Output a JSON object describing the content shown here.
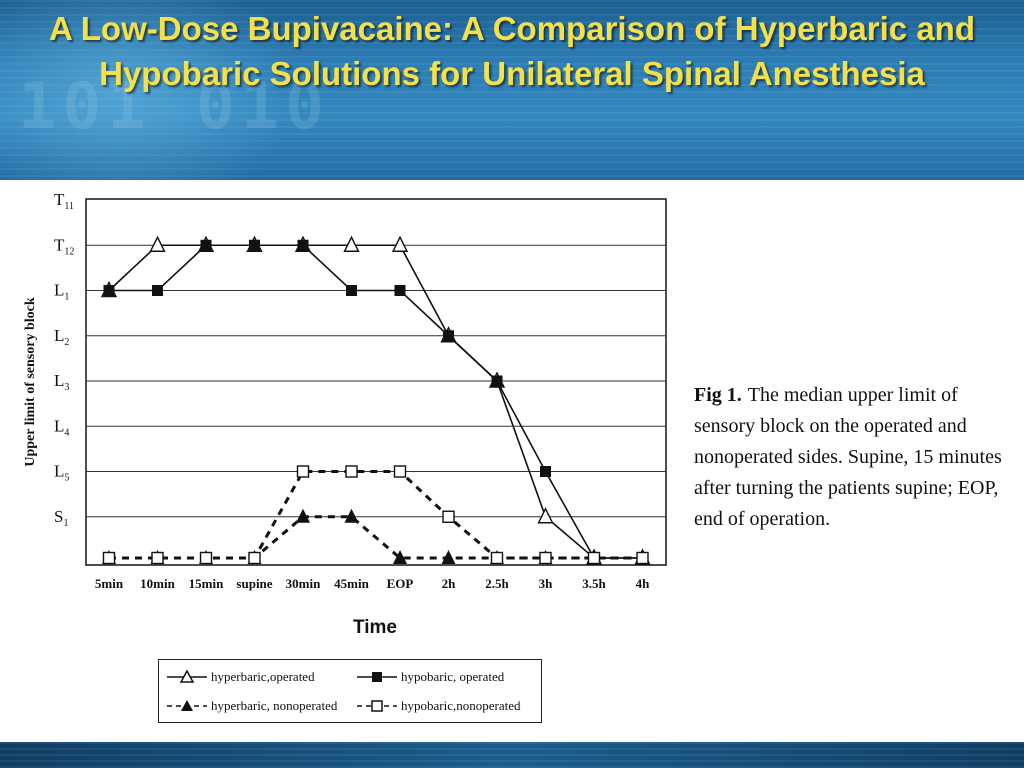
{
  "slide": {
    "title": "A Low-Dose Bupivacaine: A Comparison of Hyperbaric and Hypobaric Solutions for Unilateral Spinal Anesthesia",
    "header_color": "#2c7db4",
    "title_color": "#f4e04a"
  },
  "caption": {
    "figure_label": "Fig 1.",
    "text": "The median upper limit of sensory block on the operated and nonoperated sides. Supine, 15 minutes after turning the patients supine; EOP, end of operation."
  },
  "chart_data": {
    "type": "line",
    "xlabel": "Time",
    "ylabel": "Upper limit of sensory block",
    "categories": [
      "5min",
      "10min",
      "15min",
      "supine",
      "30min",
      "45min",
      "EOP",
      "2h",
      "2.5h",
      "3h",
      "3.5h",
      "4h"
    ],
    "y_levels": [
      "T11",
      "T12",
      "L1",
      "L2",
      "L3",
      "L4",
      "L5",
      "S1"
    ],
    "y_tick_labels": [
      {
        "main": "T",
        "sub": "11"
      },
      {
        "main": "T",
        "sub": "12"
      },
      {
        "main": "L",
        "sub": "1"
      },
      {
        "main": "L",
        "sub": "2"
      },
      {
        "main": "L",
        "sub": "3"
      },
      {
        "main": "L",
        "sub": "4"
      },
      {
        "main": "L",
        "sub": "5"
      },
      {
        "main": "S",
        "sub": "1"
      }
    ],
    "y_note": "null values = no block (plotted on baseline below S1)",
    "grid": true,
    "legend_position": "bottom",
    "series": [
      {
        "name": "hyperbaric,operated",
        "marker": "triangle-open",
        "line": "solid",
        "values": [
          "L1",
          "T12",
          "T12",
          "T12",
          "T12",
          "T12",
          "T12",
          "L2",
          "L3",
          "S1",
          null,
          null
        ]
      },
      {
        "name": "hypobaric, operated",
        "marker": "square-filled",
        "line": "solid",
        "values": [
          "L1",
          "L1",
          "T12",
          "T12",
          "T12",
          "L1",
          "L1",
          "L2",
          "L3",
          "L5",
          null,
          null
        ]
      },
      {
        "name": "hyperbaric, nonoperated",
        "marker": "triangle-filled",
        "line": "dashed",
        "values": [
          null,
          null,
          null,
          null,
          "S1",
          "S1",
          null,
          null,
          null,
          null,
          null,
          null
        ]
      },
      {
        "name": "hypobaric,nonoperated",
        "marker": "square-open",
        "line": "dashed",
        "values": [
          null,
          null,
          null,
          null,
          "L5",
          "L5",
          "L5",
          "S1",
          null,
          null,
          null,
          null
        ]
      }
    ]
  }
}
